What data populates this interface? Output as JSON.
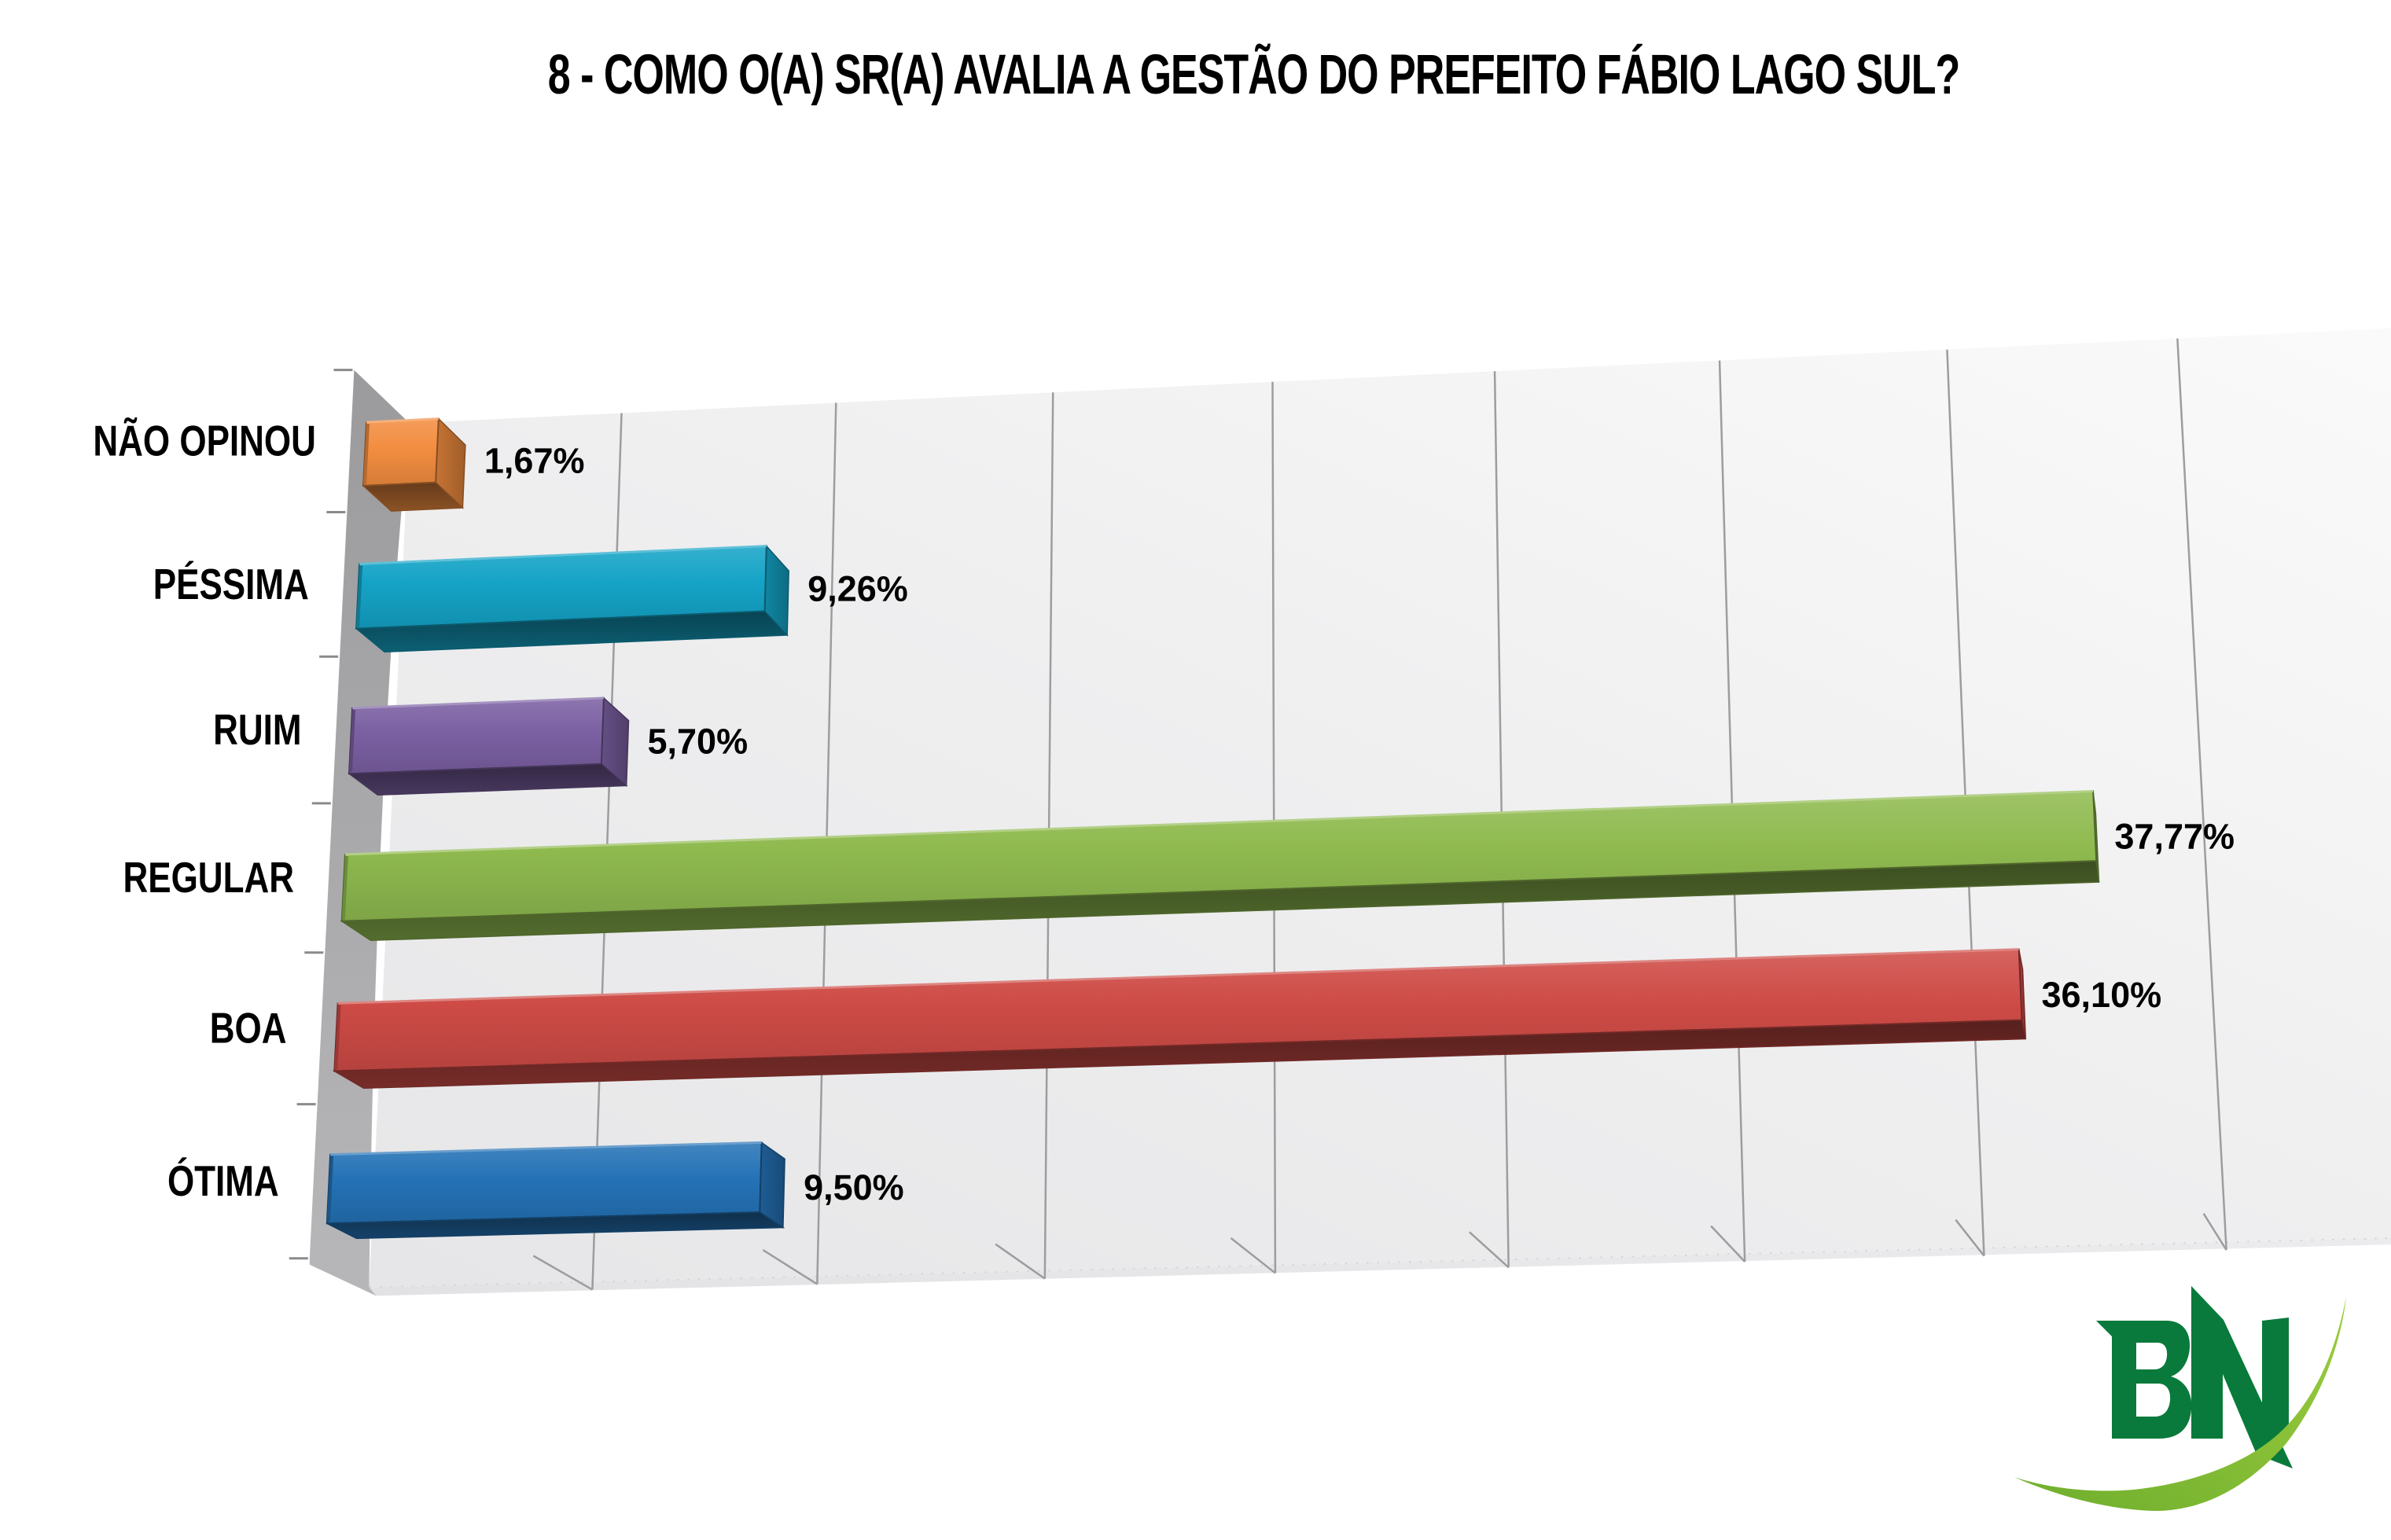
{
  "title": "8 - COMO O(A) SR(A) AVALIA A GESTÃO DO PREFEITO FÁBIO LAGO SUL?",
  "chart_data": {
    "type": "bar",
    "orientation": "horizontal",
    "style": "3d-perspective",
    "categories": [
      "NÃO OPINOU",
      "PÉSSIMA",
      "RUIM",
      "REGULAR",
      "BOA",
      "ÓTIMA"
    ],
    "values": [
      1.67,
      9.26,
      5.7,
      37.77,
      36.1,
      9.5
    ],
    "value_labels": [
      "1,67%",
      "9,26%",
      "5,70%",
      "37,77%",
      "36,10%",
      "9,50%"
    ],
    "bar_colors": [
      "#F28D40",
      "#14A3C6",
      "#7B60A2",
      "#8FBA4F",
      "#CE4B46",
      "#2472B6"
    ],
    "title": "8 - COMO O(A) SR(A) AVALIA A GESTÃO DO PREFEITO FÁBIO LAGO SUL?",
    "xlabel": "",
    "ylabel": "",
    "xlim": [
      0,
      45
    ],
    "gridline_step": 5,
    "grid": true,
    "legend_position": "none"
  },
  "logo": {
    "name": "BN",
    "letter_color": "#097A3B",
    "swoosh_color_start": "#6FAE2D",
    "swoosh_color_end": "#9CCD3E"
  }
}
